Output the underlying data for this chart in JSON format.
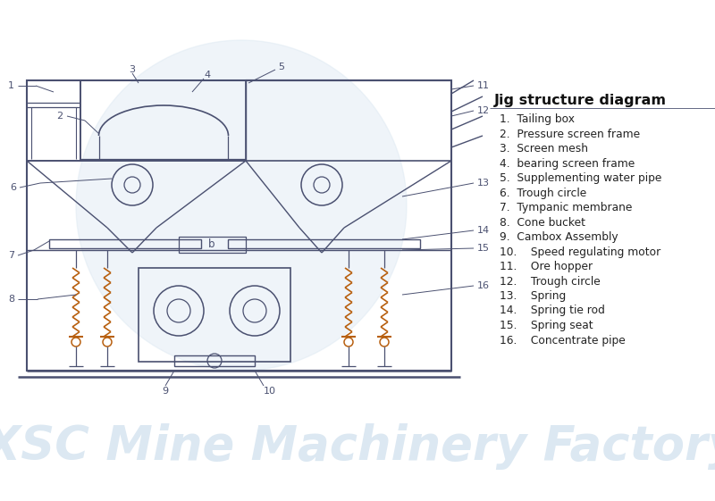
{
  "bg_color": "#ffffff",
  "watermark_text": "JXSC Mine Machinery Factory",
  "watermark_color": "#dce8f2",
  "watermark_fontsize": 38,
  "circle_watermark_color": "#dce8f2",
  "title": "Jig structure diagram",
  "title_fontsize": 11.5,
  "legend_items_1_9": [
    "1.  Tailing box",
    "2.  Pressure screen frame",
    "3.  Screen mesh",
    "4.  bearing screen frame",
    "5.  Supplementing water pipe",
    "6.  Trough circle",
    "7.  Tympanic membrane",
    "8.  Cone bucket",
    "9.  Cambox Assembly"
  ],
  "legend_items_10_16": [
    "10.    Speed regulating motor",
    "11.    Ore hopper",
    "12.    Trough circle",
    "13.    Spring",
    "14.    Spring tie rod",
    "15.    Spring seat",
    "16.    Concentrate pipe"
  ],
  "legend_fontsize": 8.8,
  "line_color": "#4a5070",
  "drawing_color": "#4a5070",
  "label_color": "#4a5070",
  "label_fontsize": 8.0,
  "orange_color": "#b86010"
}
